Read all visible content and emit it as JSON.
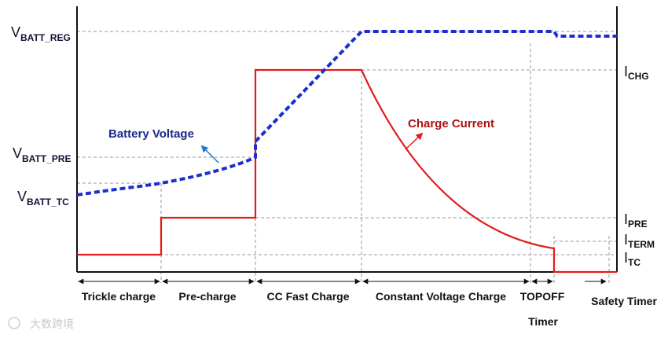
{
  "colors": {
    "voltage": "#1c2ecf",
    "current": "#e21b1b",
    "voltage_label": "#1a2a8a",
    "current_label": "#b01010",
    "arrow_blue": "#1b7bcf",
    "grid": "#9a9a9a"
  },
  "left_labels": {
    "vbatt_reg": {
      "main": "V",
      "sub": "BATT_REG"
    },
    "vbatt_pre": {
      "main": "V",
      "sub": "BATT_PRE"
    },
    "vbatt_tc": {
      "main": "V",
      "sub": "BATT_TC"
    }
  },
  "right_labels": {
    "ichg": {
      "main": "I",
      "sub": "CHG"
    },
    "ipre": {
      "main": "I",
      "sub": "PRE"
    },
    "iterm": {
      "main": "I",
      "sub": "TERM"
    },
    "itc": {
      "main": "I",
      "sub": "TC"
    }
  },
  "curve_labels": {
    "battery_voltage": "Battery Voltage",
    "charge_current": "Charge Current"
  },
  "phases": {
    "trickle": "Trickle charge",
    "pre": "Pre-charge",
    "cc": "CC Fast Charge",
    "cv": "Constant Voltage Charge",
    "topoff_1": "TOPOFF",
    "topoff_2": "Timer",
    "safety": "Safety Timer"
  },
  "watermark": "大数跨境"
}
